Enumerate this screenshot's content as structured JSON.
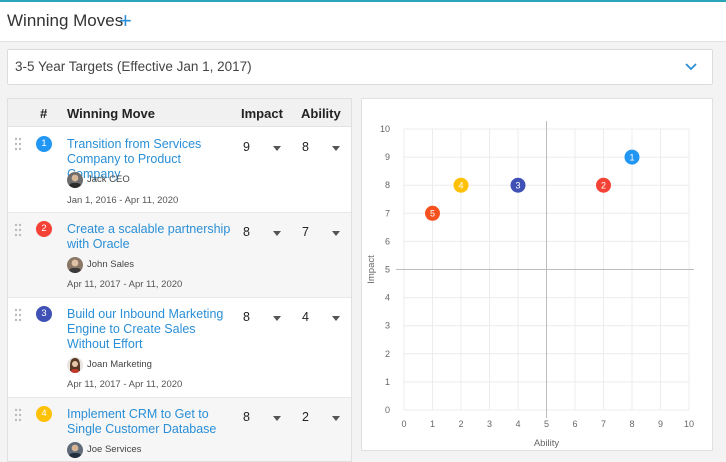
{
  "header": {
    "title": "Winning Moves",
    "add_label": "+"
  },
  "targets": {
    "label": "3-5 Year Targets (Effective Jan 1, 2017)"
  },
  "table": {
    "columns": {
      "num": "#",
      "move": "Winning Move",
      "impact": "Impact",
      "ability": "Ability"
    },
    "rows": [
      {
        "num": "1",
        "color": "#2196f3",
        "move": "Transition from Services Company to Product Company",
        "owner": "Jack CEO",
        "dates": "Jan 1, 2016 - Apr 11, 2020",
        "impact": "9",
        "ability": "8"
      },
      {
        "num": "2",
        "color": "#f44336",
        "move": "Create a scalable partnership with Oracle",
        "owner": "John Sales",
        "dates": "Apr 11, 2017 - Apr 11, 2020",
        "impact": "8",
        "ability": "7"
      },
      {
        "num": "3",
        "color": "#3f51b5",
        "move": "Build our Inbound Marketing Engine to Create Sales Without Effort",
        "owner": "Joan Marketing",
        "dates": "Apr 11, 2017 - Apr 11, 2020",
        "impact": "8",
        "ability": "4"
      },
      {
        "num": "4",
        "color": "#ffc107",
        "move": "Implement CRM to Get to Single Customer Database",
        "owner": "Joe Services",
        "dates": "",
        "impact": "8",
        "ability": "2"
      }
    ]
  },
  "chart_data": {
    "type": "scatter",
    "xlabel": "Ability",
    "ylabel": "Impact",
    "xlim": [
      0,
      10
    ],
    "ylim": [
      0,
      10
    ],
    "xticks": [
      "0",
      "1",
      "2",
      "3",
      "4",
      "5",
      "6",
      "7",
      "8",
      "9",
      "10"
    ],
    "yticks": [
      "0",
      "1",
      "2",
      "3",
      "4",
      "5",
      "6",
      "7",
      "8",
      "9",
      "10"
    ],
    "grid": true,
    "midlines": 5,
    "points": [
      {
        "label": "1",
        "x": 8,
        "y": 9,
        "color": "#2196f3"
      },
      {
        "label": "2",
        "x": 7,
        "y": 8,
        "color": "#f44336"
      },
      {
        "label": "3",
        "x": 4,
        "y": 8,
        "color": "#3f51b5"
      },
      {
        "label": "4",
        "x": 2,
        "y": 8,
        "color": "#ffc107"
      },
      {
        "label": "5",
        "x": 1,
        "y": 7,
        "color": "#f4511e"
      }
    ]
  }
}
